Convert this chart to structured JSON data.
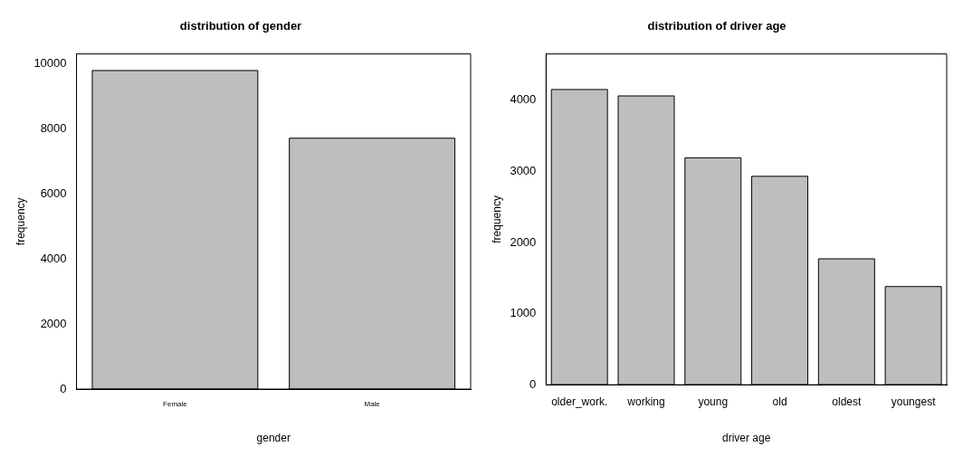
{
  "chart_data": [
    {
      "type": "bar",
      "title": "distribution of gender",
      "xlabel": "gender",
      "ylabel": "frequency",
      "categories": [
        "Female",
        "Male"
      ],
      "values": [
        9790,
        7710
      ],
      "color": "#bebebe",
      "ylim": [
        0,
        10300
      ],
      "yticks": [
        0,
        2000,
        4000,
        6000,
        8000,
        10000
      ],
      "grid": false,
      "legend": false
    },
    {
      "type": "bar",
      "title": "distribution of driver age",
      "xlabel": "driver age",
      "ylabel": "frequency",
      "categories": [
        "older_work.",
        "working",
        "young",
        "old",
        "oldest",
        "youngest"
      ],
      "values": [
        4150,
        4060,
        3190,
        2930,
        1770,
        1380
      ],
      "color": "#bebebe",
      "ylim": [
        0,
        4650
      ],
      "yticks": [
        0,
        1000,
        2000,
        3000,
        4000
      ],
      "grid": false,
      "legend": false
    }
  ]
}
